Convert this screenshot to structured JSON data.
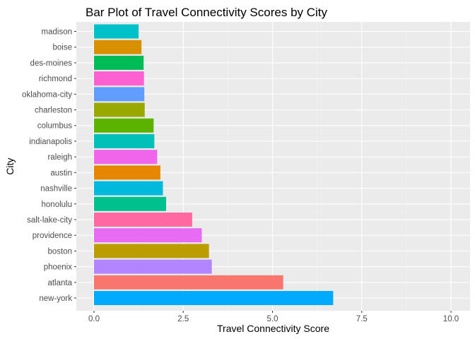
{
  "chart_data": {
    "type": "bar",
    "orientation": "horizontal",
    "title": "Bar Plot of Travel Connectivity Scores by City",
    "xlabel": "Travel Connectivity Score",
    "ylabel": "City",
    "xlim": [
      0,
      10
    ],
    "x_ticks": [
      "0.0",
      "2.5",
      "5.0",
      "7.5",
      "10.0"
    ],
    "grid": true,
    "legend": "none",
    "categories": [
      "new-york",
      "atlanta",
      "phoenix",
      "boston",
      "providence",
      "salt-lake-city",
      "honolulu",
      "nashville",
      "austin",
      "raleigh",
      "indianapolis",
      "columbus",
      "charleston",
      "oklahoma-city",
      "richmond",
      "des-moines",
      "boise",
      "madison"
    ],
    "values": [
      6.7,
      5.3,
      3.3,
      3.22,
      3.02,
      2.75,
      2.02,
      1.93,
      1.86,
      1.77,
      1.69,
      1.67,
      1.42,
      1.41,
      1.4,
      1.39,
      1.33,
      1.25
    ],
    "colors": [
      "#00ABFD",
      "#F8766D",
      "#B385FF",
      "#BB9D00",
      "#E76BF3",
      "#FF68A1",
      "#00C08D",
      "#00BADE",
      "#E58700",
      "#F066EA",
      "#00C0B8",
      "#5BB300",
      "#99A800",
      "#619CFF",
      "#FD61D1",
      "#00BC56",
      "#D89000",
      "#00C1C8"
    ]
  }
}
